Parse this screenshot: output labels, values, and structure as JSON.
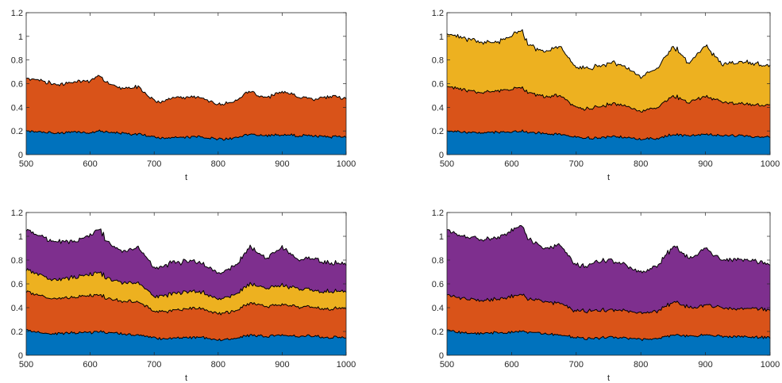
{
  "figure": {
    "layout": "2x2"
  },
  "palette": {
    "blue": "#0072BD",
    "orange": "#D95319",
    "yellow": "#EDB120",
    "purple": "#7E2F8E",
    "boundary": "#000000"
  },
  "chart_data": [
    {
      "type": "area",
      "stacked": true,
      "xlabel": "t",
      "ylabel": "",
      "xlim": [
        500,
        1000
      ],
      "ylim": [
        0,
        1.2
      ],
      "xticks": [
        "500",
        "600",
        "700",
        "800",
        "900",
        "1000"
      ],
      "yticks": [
        "0",
        "0.2",
        "0.4",
        "0.6",
        "0.8",
        "1",
        "1.2"
      ],
      "grid": false,
      "x": [
        500,
        525,
        550,
        575,
        600,
        615,
        625,
        650,
        675,
        700,
        710,
        725,
        750,
        775,
        800,
        825,
        850,
        875,
        900,
        925,
        950,
        975,
        1000
      ],
      "series": [
        {
          "color": "#0072BD",
          "values": [
            0.2,
            0.19,
            0.18,
            0.19,
            0.19,
            0.2,
            0.19,
            0.18,
            0.17,
            0.15,
            0.14,
            0.14,
            0.15,
            0.15,
            0.13,
            0.14,
            0.17,
            0.16,
            0.17,
            0.16,
            0.16,
            0.15,
            0.15
          ]
        },
        {
          "color": "#D95319",
          "values": [
            0.45,
            0.43,
            0.41,
            0.42,
            0.44,
            0.47,
            0.42,
            0.38,
            0.4,
            0.31,
            0.31,
            0.33,
            0.34,
            0.33,
            0.29,
            0.31,
            0.36,
            0.32,
            0.37,
            0.33,
            0.31,
            0.34,
            0.32
          ]
        }
      ]
    },
    {
      "type": "area",
      "stacked": true,
      "xlabel": "t",
      "ylabel": "",
      "xlim": [
        500,
        1000
      ],
      "ylim": [
        0,
        1.2
      ],
      "xticks": [
        "500",
        "600",
        "700",
        "800",
        "900",
        "1000"
      ],
      "yticks": [
        "0",
        "0.2",
        "0.4",
        "0.6",
        "0.8",
        "1",
        "1.2"
      ],
      "grid": false,
      "x": [
        500,
        525,
        550,
        575,
        600,
        615,
        625,
        650,
        675,
        700,
        710,
        725,
        750,
        775,
        800,
        825,
        850,
        875,
        900,
        925,
        950,
        975,
        1000
      ],
      "series": [
        {
          "color": "#0072BD",
          "values": [
            0.2,
            0.19,
            0.18,
            0.19,
            0.19,
            0.2,
            0.19,
            0.18,
            0.17,
            0.15,
            0.14,
            0.14,
            0.15,
            0.15,
            0.13,
            0.14,
            0.17,
            0.16,
            0.17,
            0.16,
            0.16,
            0.15,
            0.15
          ]
        },
        {
          "color": "#D95319",
          "values": [
            0.38,
            0.36,
            0.34,
            0.35,
            0.36,
            0.37,
            0.34,
            0.31,
            0.33,
            0.25,
            0.24,
            0.26,
            0.27,
            0.27,
            0.24,
            0.26,
            0.33,
            0.28,
            0.32,
            0.29,
            0.27,
            0.27,
            0.27
          ]
        },
        {
          "color": "#EDB120",
          "values": [
            0.45,
            0.44,
            0.43,
            0.41,
            0.45,
            0.49,
            0.41,
            0.38,
            0.42,
            0.33,
            0.35,
            0.34,
            0.35,
            0.33,
            0.29,
            0.33,
            0.42,
            0.33,
            0.43,
            0.32,
            0.35,
            0.35,
            0.33
          ]
        }
      ]
    },
    {
      "type": "area",
      "stacked": true,
      "xlabel": "t",
      "ylabel": "",
      "xlim": [
        500,
        1000
      ],
      "ylim": [
        0,
        1.2
      ],
      "xticks": [
        "500",
        "600",
        "700",
        "800",
        "900",
        "1000"
      ],
      "yticks": [
        "0",
        "0.2",
        "0.4",
        "0.6",
        "0.8",
        "1",
        "1.2"
      ],
      "grid": false,
      "x": [
        500,
        525,
        550,
        575,
        600,
        615,
        625,
        650,
        675,
        700,
        710,
        725,
        750,
        775,
        800,
        825,
        850,
        875,
        900,
        925,
        950,
        975,
        1000
      ],
      "series": [
        {
          "color": "#0072BD",
          "values": [
            0.21,
            0.19,
            0.18,
            0.19,
            0.19,
            0.2,
            0.19,
            0.18,
            0.17,
            0.15,
            0.14,
            0.14,
            0.15,
            0.15,
            0.13,
            0.14,
            0.17,
            0.16,
            0.17,
            0.16,
            0.16,
            0.15,
            0.15
          ]
        },
        {
          "color": "#D95319",
          "values": [
            0.32,
            0.31,
            0.29,
            0.3,
            0.31,
            0.31,
            0.29,
            0.27,
            0.28,
            0.22,
            0.23,
            0.23,
            0.24,
            0.24,
            0.22,
            0.23,
            0.27,
            0.25,
            0.26,
            0.25,
            0.24,
            0.24,
            0.24
          ]
        },
        {
          "color": "#EDB120",
          "values": [
            0.18,
            0.17,
            0.16,
            0.17,
            0.18,
            0.19,
            0.17,
            0.16,
            0.16,
            0.13,
            0.13,
            0.14,
            0.14,
            0.14,
            0.12,
            0.14,
            0.16,
            0.15,
            0.16,
            0.15,
            0.14,
            0.15,
            0.14
          ]
        },
        {
          "color": "#7E2F8E",
          "values": [
            0.33,
            0.33,
            0.32,
            0.3,
            0.33,
            0.37,
            0.31,
            0.26,
            0.3,
            0.24,
            0.24,
            0.26,
            0.26,
            0.24,
            0.22,
            0.24,
            0.31,
            0.25,
            0.32,
            0.24,
            0.27,
            0.24,
            0.23
          ]
        }
      ]
    },
    {
      "type": "area",
      "stacked": true,
      "xlabel": "t",
      "ylabel": "",
      "xlim": [
        500,
        1000
      ],
      "ylim": [
        0,
        1.2
      ],
      "xticks": [
        "500",
        "600",
        "700",
        "800",
        "900",
        "1000"
      ],
      "yticks": [
        "0",
        "0.2",
        "0.4",
        "0.6",
        "0.8",
        "1",
        "1.2"
      ],
      "grid": false,
      "x": [
        500,
        525,
        550,
        575,
        600,
        615,
        625,
        650,
        675,
        700,
        710,
        725,
        750,
        775,
        800,
        825,
        850,
        875,
        900,
        925,
        950,
        975,
        1000
      ],
      "series": [
        {
          "color": "#0072BD",
          "values": [
            0.21,
            0.19,
            0.18,
            0.19,
            0.19,
            0.2,
            0.19,
            0.18,
            0.17,
            0.15,
            0.14,
            0.14,
            0.15,
            0.15,
            0.13,
            0.14,
            0.17,
            0.16,
            0.17,
            0.16,
            0.16,
            0.15,
            0.15
          ]
        },
        {
          "color": "#D95319",
          "values": [
            0.3,
            0.29,
            0.28,
            0.28,
            0.3,
            0.31,
            0.28,
            0.27,
            0.27,
            0.22,
            0.23,
            0.23,
            0.23,
            0.23,
            0.22,
            0.23,
            0.28,
            0.24,
            0.25,
            0.24,
            0.23,
            0.25,
            0.23
          ]
        },
        {
          "color": "#7E2F8E",
          "values": [
            0.55,
            0.52,
            0.52,
            0.51,
            0.55,
            0.58,
            0.51,
            0.44,
            0.49,
            0.39,
            0.37,
            0.4,
            0.42,
            0.39,
            0.34,
            0.38,
            0.47,
            0.41,
            0.48,
            0.4,
            0.42,
            0.4,
            0.38
          ]
        }
      ]
    }
  ]
}
